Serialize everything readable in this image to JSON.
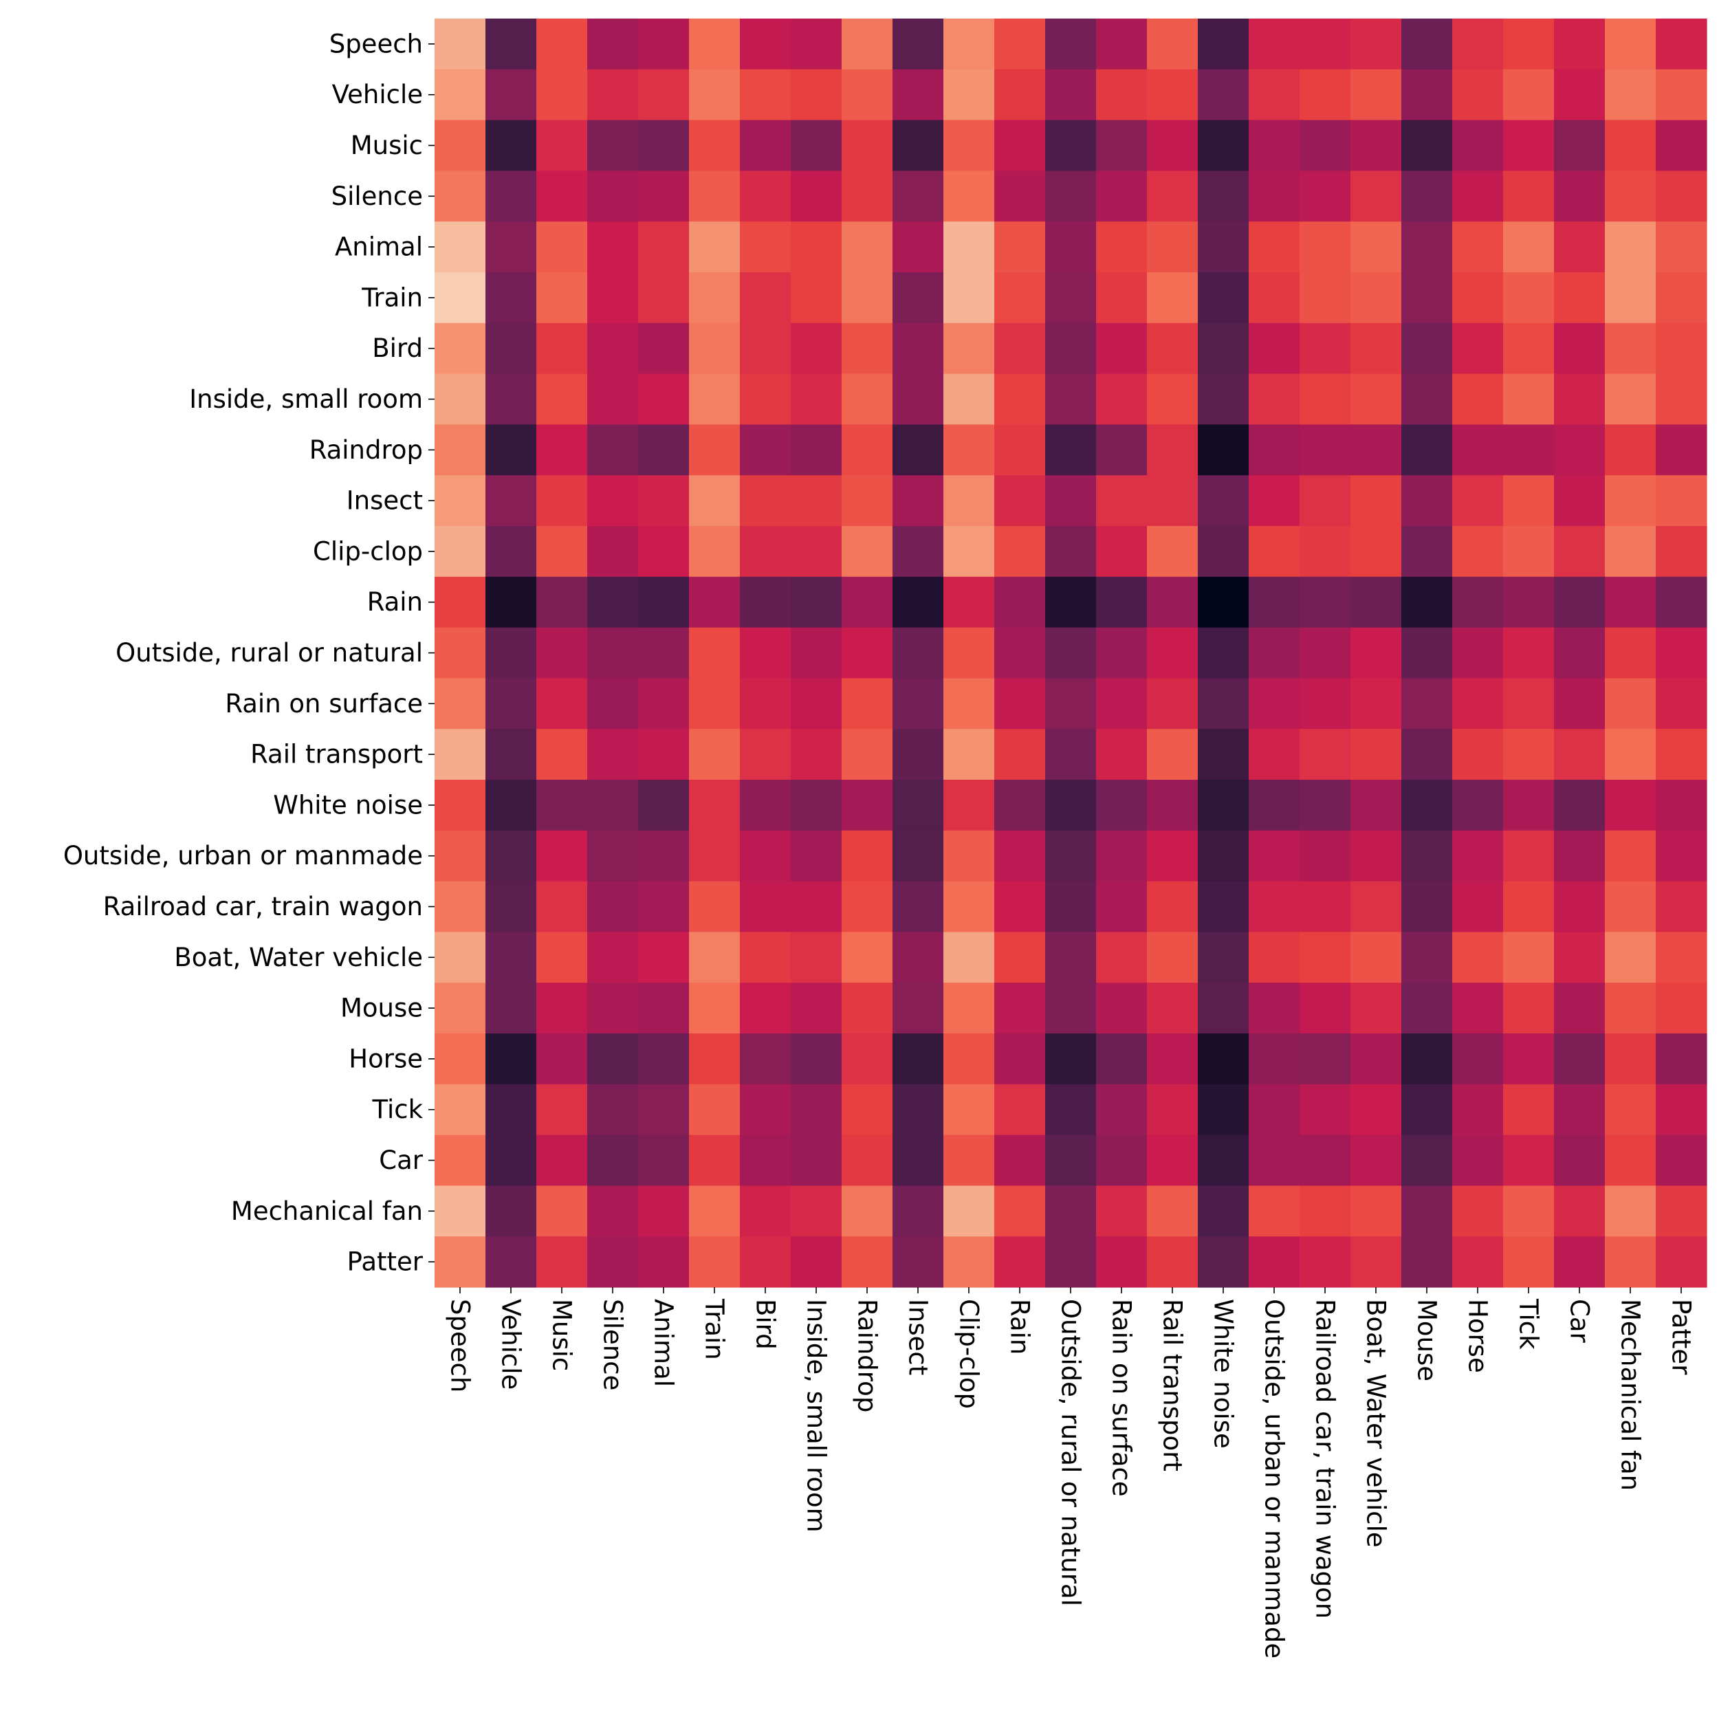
{
  "chart_data": {
    "type": "heatmap",
    "title": "",
    "xlabel": "",
    "ylabel": "",
    "colormap": "rocket",
    "grid": false,
    "legend": "none",
    "value_range": [
      0,
      1
    ],
    "value_note": "cell values are relative color intensities (0 = darkest, 1 = lightest); no colorbar is shown",
    "labels": [
      "Speech",
      "Vehicle",
      "Music",
      "Silence",
      "Animal",
      "Train",
      "Bird",
      "Inside, small room",
      "Raindrop",
      "Insect",
      "Clip-clop",
      "Rain",
      "Outside, rural or natural",
      "Rain on surface",
      "Rail transport",
      "White noise",
      "Outside, urban or manmade",
      "Railroad car, train wagon",
      "Boat, Water vehicle",
      "Mouse",
      "Horse",
      "Tick",
      "Car",
      "Mechanical fan",
      "Patter"
    ],
    "x_categories": [
      "Speech",
      "Vehicle",
      "Music",
      "Silence",
      "Animal",
      "Train",
      "Bird",
      "Inside, small room",
      "Raindrop",
      "Insect",
      "Clip-clop",
      "Rain",
      "Outside, rural or natural",
      "Rain on surface",
      "Rail transport",
      "White noise",
      "Outside, urban or manmade",
      "Railroad car, train wagon",
      "Boat, Water vehicle",
      "Mouse",
      "Horse",
      "Tick",
      "Car",
      "Mechanical fan",
      "Patter"
    ],
    "y_categories": [
      "Speech",
      "Vehicle",
      "Music",
      "Silence",
      "Animal",
      "Train",
      "Bird",
      "Inside, small room",
      "Raindrop",
      "Insect",
      "Clip-clop",
      "Rain",
      "Outside, rural or natural",
      "Rain on surface",
      "Rail transport",
      "White noise",
      "Outside, urban or manmade",
      "Railroad car, train wagon",
      "Boat, Water vehicle",
      "Mouse",
      "Horse",
      "Tick",
      "Car",
      "Mechanical fan",
      "Patter"
    ],
    "values": [
      [
        0.84,
        0.22,
        0.62,
        0.4,
        0.44,
        0.7,
        0.48,
        0.46,
        0.72,
        0.24,
        0.76,
        0.62,
        0.3,
        0.42,
        0.66,
        0.18,
        0.52,
        0.52,
        0.54,
        0.28,
        0.56,
        0.6,
        0.52,
        0.7,
        0.52
      ],
      [
        0.8,
        0.34,
        0.62,
        0.54,
        0.56,
        0.72,
        0.62,
        0.6,
        0.66,
        0.4,
        0.78,
        0.58,
        0.38,
        0.58,
        0.6,
        0.3,
        0.56,
        0.6,
        0.64,
        0.36,
        0.58,
        0.66,
        0.5,
        0.72,
        0.66
      ],
      [
        0.68,
        0.14,
        0.54,
        0.32,
        0.3,
        0.62,
        0.4,
        0.32,
        0.58,
        0.16,
        0.66,
        0.48,
        0.2,
        0.34,
        0.48,
        0.12,
        0.42,
        0.38,
        0.44,
        0.16,
        0.4,
        0.5,
        0.34,
        0.6,
        0.44
      ],
      [
        0.72,
        0.3,
        0.5,
        0.42,
        0.44,
        0.66,
        0.54,
        0.48,
        0.58,
        0.34,
        0.7,
        0.44,
        0.32,
        0.42,
        0.56,
        0.24,
        0.44,
        0.46,
        0.56,
        0.3,
        0.48,
        0.58,
        0.42,
        0.62,
        0.58
      ],
      [
        0.88,
        0.34,
        0.66,
        0.5,
        0.56,
        0.78,
        0.62,
        0.6,
        0.72,
        0.42,
        0.86,
        0.64,
        0.36,
        0.6,
        0.64,
        0.26,
        0.6,
        0.64,
        0.68,
        0.34,
        0.62,
        0.72,
        0.54,
        0.78,
        0.66
      ],
      [
        0.92,
        0.3,
        0.68,
        0.5,
        0.56,
        0.74,
        0.56,
        0.6,
        0.72,
        0.32,
        0.86,
        0.62,
        0.34,
        0.58,
        0.7,
        0.2,
        0.58,
        0.64,
        0.66,
        0.34,
        0.6,
        0.66,
        0.6,
        0.78,
        0.64
      ],
      [
        0.78,
        0.28,
        0.58,
        0.46,
        0.42,
        0.72,
        0.56,
        0.52,
        0.64,
        0.36,
        0.74,
        0.56,
        0.32,
        0.48,
        0.58,
        0.22,
        0.48,
        0.54,
        0.58,
        0.3,
        0.52,
        0.62,
        0.48,
        0.66,
        0.62
      ],
      [
        0.82,
        0.3,
        0.62,
        0.46,
        0.5,
        0.74,
        0.58,
        0.54,
        0.68,
        0.36,
        0.82,
        0.6,
        0.34,
        0.54,
        0.62,
        0.24,
        0.56,
        0.6,
        0.62,
        0.32,
        0.6,
        0.68,
        0.52,
        0.72,
        0.62
      ],
      [
        0.74,
        0.14,
        0.5,
        0.32,
        0.28,
        0.64,
        0.38,
        0.36,
        0.62,
        0.16,
        0.66,
        0.58,
        0.18,
        0.32,
        0.56,
        0.04,
        0.4,
        0.42,
        0.42,
        0.18,
        0.44,
        0.44,
        0.46,
        0.58,
        0.44
      ],
      [
        0.8,
        0.34,
        0.58,
        0.5,
        0.52,
        0.76,
        0.58,
        0.58,
        0.64,
        0.4,
        0.76,
        0.54,
        0.38,
        0.56,
        0.56,
        0.28,
        0.5,
        0.56,
        0.6,
        0.36,
        0.56,
        0.64,
        0.48,
        0.68,
        0.66
      ],
      [
        0.84,
        0.28,
        0.64,
        0.44,
        0.5,
        0.72,
        0.54,
        0.54,
        0.72,
        0.3,
        0.8,
        0.62,
        0.32,
        0.52,
        0.68,
        0.26,
        0.6,
        0.58,
        0.6,
        0.3,
        0.62,
        0.66,
        0.56,
        0.72,
        0.58
      ],
      [
        0.6,
        0.06,
        0.32,
        0.2,
        0.18,
        0.42,
        0.26,
        0.24,
        0.4,
        0.08,
        0.52,
        0.38,
        0.08,
        0.2,
        0.38,
        0.0,
        0.28,
        0.3,
        0.28,
        0.08,
        0.32,
        0.36,
        0.28,
        0.42,
        0.3
      ],
      [
        0.66,
        0.26,
        0.44,
        0.36,
        0.36,
        0.62,
        0.5,
        0.44,
        0.5,
        0.28,
        0.64,
        0.4,
        0.28,
        0.38,
        0.5,
        0.18,
        0.38,
        0.42,
        0.5,
        0.26,
        0.44,
        0.52,
        0.38,
        0.58,
        0.5
      ],
      [
        0.72,
        0.28,
        0.52,
        0.38,
        0.44,
        0.62,
        0.52,
        0.48,
        0.62,
        0.3,
        0.7,
        0.48,
        0.34,
        0.46,
        0.54,
        0.24,
        0.46,
        0.48,
        0.52,
        0.34,
        0.52,
        0.56,
        0.44,
        0.66,
        0.52
      ],
      [
        0.84,
        0.24,
        0.62,
        0.46,
        0.48,
        0.68,
        0.56,
        0.52,
        0.66,
        0.26,
        0.78,
        0.58,
        0.3,
        0.52,
        0.66,
        0.16,
        0.52,
        0.56,
        0.58,
        0.28,
        0.58,
        0.62,
        0.56,
        0.7,
        0.6
      ],
      [
        0.62,
        0.16,
        0.32,
        0.32,
        0.24,
        0.56,
        0.36,
        0.32,
        0.4,
        0.22,
        0.56,
        0.32,
        0.18,
        0.3,
        0.38,
        0.12,
        0.28,
        0.3,
        0.4,
        0.18,
        0.3,
        0.42,
        0.28,
        0.48,
        0.44
      ],
      [
        0.66,
        0.22,
        0.5,
        0.34,
        0.36,
        0.56,
        0.46,
        0.4,
        0.6,
        0.22,
        0.66,
        0.46,
        0.24,
        0.4,
        0.5,
        0.16,
        0.46,
        0.44,
        0.48,
        0.24,
        0.46,
        0.56,
        0.4,
        0.62,
        0.46
      ],
      [
        0.72,
        0.24,
        0.56,
        0.38,
        0.4,
        0.64,
        0.48,
        0.48,
        0.62,
        0.28,
        0.7,
        0.5,
        0.26,
        0.42,
        0.58,
        0.18,
        0.52,
        0.52,
        0.56,
        0.26,
        0.48,
        0.6,
        0.48,
        0.66,
        0.54
      ],
      [
        0.82,
        0.28,
        0.62,
        0.46,
        0.5,
        0.74,
        0.58,
        0.56,
        0.7,
        0.36,
        0.82,
        0.6,
        0.32,
        0.56,
        0.64,
        0.22,
        0.58,
        0.6,
        0.64,
        0.32,
        0.62,
        0.68,
        0.52,
        0.74,
        0.62
      ],
      [
        0.74,
        0.28,
        0.48,
        0.42,
        0.4,
        0.7,
        0.5,
        0.46,
        0.58,
        0.34,
        0.7,
        0.46,
        0.32,
        0.44,
        0.54,
        0.24,
        0.42,
        0.48,
        0.54,
        0.3,
        0.46,
        0.58,
        0.42,
        0.64,
        0.6
      ],
      [
        0.7,
        0.1,
        0.42,
        0.24,
        0.28,
        0.6,
        0.34,
        0.3,
        0.56,
        0.14,
        0.64,
        0.42,
        0.12,
        0.28,
        0.46,
        0.06,
        0.36,
        0.34,
        0.42,
        0.12,
        0.36,
        0.46,
        0.32,
        0.58,
        0.36
      ],
      [
        0.78,
        0.18,
        0.56,
        0.32,
        0.34,
        0.66,
        0.42,
        0.38,
        0.6,
        0.2,
        0.7,
        0.56,
        0.2,
        0.38,
        0.52,
        0.1,
        0.4,
        0.46,
        0.5,
        0.18,
        0.44,
        0.58,
        0.4,
        0.62,
        0.48
      ],
      [
        0.7,
        0.18,
        0.48,
        0.28,
        0.32,
        0.58,
        0.4,
        0.38,
        0.58,
        0.2,
        0.64,
        0.44,
        0.24,
        0.36,
        0.5,
        0.14,
        0.4,
        0.4,
        0.46,
        0.22,
        0.42,
        0.52,
        0.38,
        0.6,
        0.42
      ],
      [
        0.86,
        0.26,
        0.66,
        0.42,
        0.48,
        0.7,
        0.52,
        0.54,
        0.72,
        0.3,
        0.84,
        0.62,
        0.32,
        0.54,
        0.66,
        0.2,
        0.62,
        0.6,
        0.62,
        0.32,
        0.58,
        0.66,
        0.54,
        0.74,
        0.58
      ],
      [
        0.74,
        0.3,
        0.56,
        0.4,
        0.44,
        0.66,
        0.54,
        0.48,
        0.64,
        0.32,
        0.72,
        0.52,
        0.32,
        0.48,
        0.58,
        0.24,
        0.48,
        0.52,
        0.56,
        0.32,
        0.54,
        0.64,
        0.46,
        0.66,
        0.54
      ]
    ]
  }
}
